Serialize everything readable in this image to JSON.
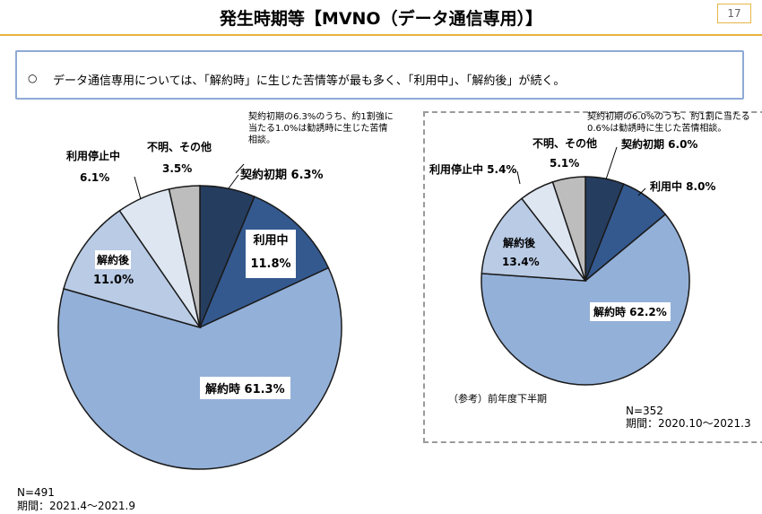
{
  "page": {
    "title": "発生時期等【MVNO（データ通信専用）】",
    "page_number": "17",
    "summary_bullet": "○",
    "summary_text": "データ通信専用については、「解約時」に生じた苦情等が最も多く、「利用中」、「解約後」が続く。"
  },
  "colors": {
    "keiyaku_shoki": "#253d5f",
    "riyouchuu": "#34598f",
    "kaiyakuji": "#93b0d8",
    "kaiyakugo": "#b9cbe5",
    "riyou_teishi": "#dde6f1",
    "fumei": "#bdbdbd",
    "accent": "#e8b33c",
    "frame": "#8eaad6"
  },
  "chart_data": [
    {
      "type": "pie",
      "title": "",
      "categories": [
        "契約初期",
        "利用中",
        "解約時",
        "解約後",
        "利用停止中",
        "不明、その他"
      ],
      "values": [
        6.3,
        11.8,
        61.3,
        11.0,
        6.1,
        3.5
      ],
      "labels": {
        "keiyaku_shoki": "契約初期 6.3%",
        "riyouchuu_name": "利用中",
        "riyouchuu_value": "11.8%",
        "kaiyakuji": "解約時 61.3%",
        "kaiyakugo_name": "解約後",
        "kaiyakugo_value": "11.0%",
        "teishi_name": "利用停止中",
        "teishi_value": "6.1%",
        "fumei_name": "不明、その他",
        "fumei_value": "3.5%"
      },
      "note_lines": [
        "契約初期の6.3%のうち、約1割強に",
        "当たる1.0%は勧誘時に生じた苦情",
        "相談。"
      ],
      "n": "N=491",
      "period": "期間：2021.4～2021.9"
    },
    {
      "type": "pie",
      "title": "（参考）前年度下半期",
      "categories": [
        "契約初期",
        "利用中",
        "解約時",
        "解約後",
        "利用停止中",
        "不明、その他"
      ],
      "values": [
        6.0,
        8.0,
        62.2,
        13.4,
        5.4,
        5.1
      ],
      "labels": {
        "keiyaku_shoki": "契約初期 6.0%",
        "riyouchuu": "利用中 8.0%",
        "kaiyakuji": "解約時 62.2%",
        "kaiyakugo_name": "解約後",
        "kaiyakugo_value": "13.4%",
        "teishi": "利用停止中 5.4%",
        "fumei_name": "不明、その他",
        "fumei_value": "5.1%"
      },
      "note_lines": [
        "契約初期の6.0%のうち、約1割に当たる",
        "0.6%は勧誘時に生じた苦情相談。"
      ],
      "n": "N=352",
      "period": "期間：2020.10～2021.3"
    }
  ]
}
